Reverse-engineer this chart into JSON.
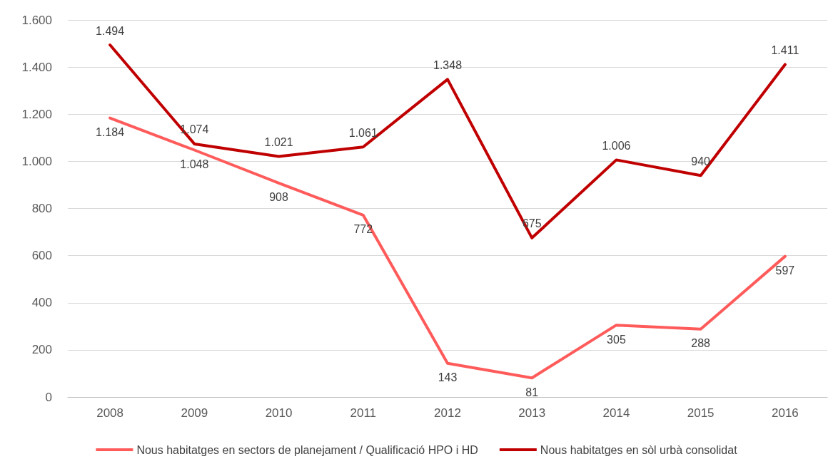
{
  "chart_data": {
    "type": "line",
    "categories": [
      "2008",
      "2009",
      "2010",
      "2011",
      "2012",
      "2013",
      "2014",
      "2015",
      "2016"
    ],
    "series": [
      {
        "name": "Nous habitatges en sectors de planejament / Qualificació HPO i HD",
        "color": "#ff5b5b",
        "values": [
          1184,
          1048,
          908,
          772,
          143,
          81,
          305,
          288,
          597
        ],
        "value_labels": [
          "1.184",
          "1.048",
          "908",
          "772",
          "143",
          "81",
          "305",
          "288",
          "597"
        ]
      },
      {
        "name": "Nous habitatges en sòl urbà consolidat",
        "color": "#c00000",
        "values": [
          1494,
          1074,
          1021,
          1061,
          1348,
          675,
          1006,
          940,
          1411
        ],
        "value_labels": [
          "1.494",
          "1.074",
          "1.021",
          "1.061",
          "1.348",
          "675",
          "1.006",
          "940",
          "1.411"
        ]
      }
    ],
    "ylim": [
      0,
      1600
    ],
    "yticks": [
      0,
      200,
      400,
      600,
      800,
      {
        "value": 1000,
        "label": "1.000"
      },
      {
        "value": 1200,
        "label": "1.200"
      },
      {
        "value": 1400,
        "label": "1.400"
      },
      {
        "value": 1600,
        "label": "1.600"
      }
    ],
    "grid": "y",
    "legend": "bottom",
    "marker": "none",
    "line_style": "solid"
  }
}
